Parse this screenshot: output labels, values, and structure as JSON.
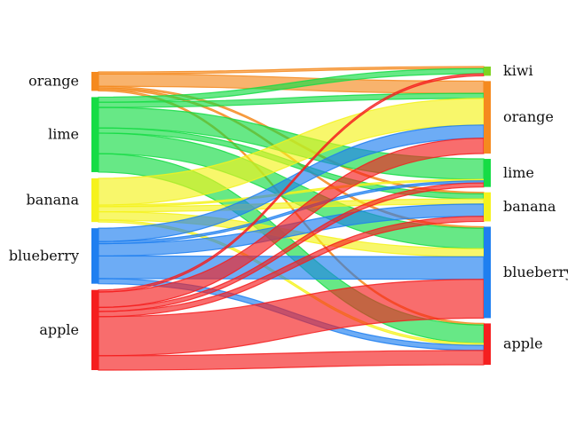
{
  "chart_data": {
    "type": "sankey",
    "left_nodes": [
      {
        "id": "orange",
        "label": "orange",
        "color": "#f58a1f"
      },
      {
        "id": "lime",
        "label": "lime",
        "color": "#16dc45"
      },
      {
        "id": "banana",
        "label": "banana",
        "color": "#f5f21c"
      },
      {
        "id": "blueberry",
        "label": "blueberry",
        "color": "#1f7ff0"
      },
      {
        "id": "apple",
        "label": "apple",
        "color": "#f51f1f"
      }
    ],
    "right_nodes": [
      {
        "id": "kiwi",
        "label": "kiwi",
        "color": "#7ed321"
      },
      {
        "id": "orange",
        "label": "orange",
        "color": "#f58a1f"
      },
      {
        "id": "lime",
        "label": "lime",
        "color": "#16dc45"
      },
      {
        "id": "banana",
        "label": "banana",
        "color": "#f5f21c"
      },
      {
        "id": "blueberry",
        "label": "blueberry",
        "color": "#1f7ff0"
      },
      {
        "id": "apple",
        "label": "apple",
        "color": "#f51f1f"
      }
    ],
    "flows": [
      {
        "source": "orange",
        "target": "kiwi",
        "value": 0.4
      },
      {
        "source": "orange",
        "target": "orange",
        "value": 2.4
      },
      {
        "source": "orange",
        "target": "banana",
        "value": 0.3
      },
      {
        "source": "orange",
        "target": "blueberry",
        "value": 0.3
      },
      {
        "source": "orange",
        "target": "apple",
        "value": 0.3
      },
      {
        "source": "lime",
        "target": "kiwi",
        "value": 1.0
      },
      {
        "source": "lime",
        "target": "orange",
        "value": 1.0
      },
      {
        "source": "lime",
        "target": "lime",
        "value": 4.0
      },
      {
        "source": "lime",
        "target": "banana",
        "value": 1.0
      },
      {
        "source": "lime",
        "target": "blueberry",
        "value": 4.0
      },
      {
        "source": "lime",
        "target": "apple",
        "value": 3.6
      },
      {
        "source": "banana",
        "target": "orange",
        "value": 5.2
      },
      {
        "source": "banana",
        "target": "lime",
        "value": 0.3
      },
      {
        "source": "banana",
        "target": "banana",
        "value": 1.0
      },
      {
        "source": "banana",
        "target": "blueberry",
        "value": 1.6
      },
      {
        "source": "banana",
        "target": "apple",
        "value": 0.4
      },
      {
        "source": "blueberry",
        "target": "orange",
        "value": 2.6
      },
      {
        "source": "blueberry",
        "target": "lime",
        "value": 0.4
      },
      {
        "source": "blueberry",
        "target": "banana",
        "value": 2.4
      },
      {
        "source": "blueberry",
        "target": "blueberry",
        "value": 4.4
      },
      {
        "source": "blueberry",
        "target": "apple",
        "value": 1.0
      },
      {
        "source": "apple",
        "target": "kiwi",
        "value": 0.4
      },
      {
        "source": "apple",
        "target": "orange",
        "value": 3.0
      },
      {
        "source": "apple",
        "target": "lime",
        "value": 0.8
      },
      {
        "source": "apple",
        "target": "banana",
        "value": 1.0
      },
      {
        "source": "apple",
        "target": "blueberry",
        "value": 7.6
      },
      {
        "source": "apple",
        "target": "apple",
        "value": 2.8
      }
    ]
  }
}
